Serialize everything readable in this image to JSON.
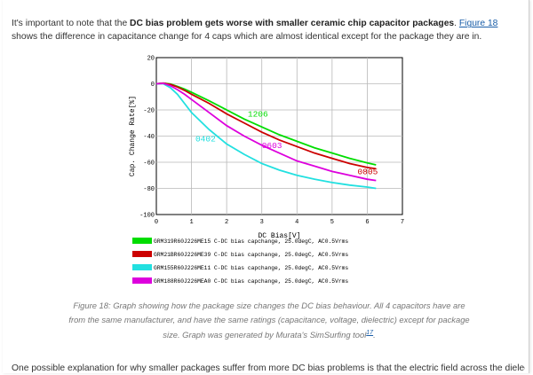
{
  "intro": {
    "text_before": "It's important to note that the ",
    "bold": "DC bias problem gets worse with smaller ceramic chip capacitor packages",
    "text_mid": ". ",
    "link": "Figure 18",
    "text_after": " shows the difference in capacitance change for 4 caps which are almost identical except for the package they are in."
  },
  "chart_data": {
    "type": "line",
    "xlabel": "DC Bias[V]",
    "ylabel": "Cap. Change Rate[%]",
    "xlim": [
      0,
      7
    ],
    "ylim": [
      -100,
      20
    ],
    "xticks": [
      "0",
      "1",
      "2",
      "3",
      "4",
      "5",
      "6",
      "7"
    ],
    "yticks": [
      "20",
      "0",
      "-20",
      "-40",
      "-60",
      "-80",
      "-100"
    ],
    "grid": true,
    "series": [
      {
        "name": "GRM319R60J226ME15 C-DC bias capchange, 25.0degC, AC0.5Vrms",
        "label": "1206",
        "color": "#00dd00",
        "x": [
          0,
          0.2,
          0.4,
          0.6,
          0.8,
          1.0,
          1.5,
          2.0,
          2.5,
          3.0,
          3.5,
          4.0,
          4.5,
          5.0,
          5.5,
          6.0,
          6.25
        ],
        "y": [
          0,
          0.5,
          -0.2,
          -2,
          -4,
          -6.5,
          -13,
          -20,
          -27,
          -33,
          -39,
          -44,
          -49,
          -53,
          -57,
          -60.5,
          -62
        ]
      },
      {
        "name": "GRM21BR60J226ME39 C-DC bias capchange, 25.0degC, AC0.5Vrms",
        "label": "0805",
        "color": "#cc0000",
        "x": [
          0,
          0.2,
          0.4,
          0.6,
          0.8,
          1.0,
          1.5,
          2.0,
          2.5,
          3.0,
          3.5,
          4.0,
          4.5,
          5.0,
          5.5,
          6.0,
          6.25
        ],
        "y": [
          0,
          0.5,
          -0.5,
          -2.5,
          -5,
          -8,
          -15,
          -23,
          -30,
          -37,
          -43,
          -48,
          -53,
          -57,
          -61,
          -64,
          -65
        ]
      },
      {
        "name": "GRM155R60J226ME11 C-DC bias capchange, 25.0degC, AC0.5Vrms",
        "label": "0402",
        "color": "#22e0e0",
        "x": [
          0,
          0.2,
          0.4,
          0.6,
          0.8,
          1.0,
          1.5,
          2.0,
          2.5,
          3.0,
          3.5,
          4.0,
          4.5,
          5.0,
          5.5,
          6.0,
          6.25
        ],
        "y": [
          0,
          0,
          -3,
          -8,
          -15,
          -22,
          -35,
          -46,
          -54,
          -61,
          -66,
          -70,
          -73,
          -75.5,
          -77.5,
          -79,
          -80
        ]
      },
      {
        "name": "GRM188R60J226MEA0 C-DC bias capchange, 25.0degC, AC0.5Vrms",
        "label": "0603",
        "color": "#dd00dd",
        "x": [
          0,
          0.2,
          0.4,
          0.6,
          0.8,
          1.0,
          1.5,
          2.0,
          2.5,
          3.0,
          3.5,
          4.0,
          4.5,
          5.0,
          5.5,
          6.0,
          6.25
        ],
        "y": [
          0,
          0.3,
          -1.5,
          -4.5,
          -8,
          -12,
          -22,
          -32,
          -40,
          -47,
          -53,
          -59,
          -63,
          -67,
          -70,
          -73,
          -74
        ]
      }
    ]
  },
  "caption": {
    "text": "Figure 18: Graph showing how the package size changes the DC bias behaviour. All 4 capacitors have are from the same manufacturer, and have the same ratings (capacitance, voltage, dielectric) except for package size. Graph was generated by Murata's SimSurfing tool",
    "ref": "17",
    "end": "."
  },
  "bottom_text": "One possible explanation for why smaller packages suffer from more DC bias problems is that the electric field across the dielectric is"
}
